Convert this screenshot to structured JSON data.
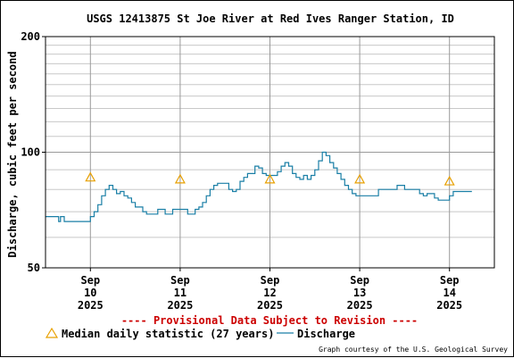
{
  "chart_data": {
    "type": "line",
    "title": "USGS 12413875 St Joe River at Red Ives Ranger Station, ID",
    "ylabel": "Discharge, cubic feet per second",
    "y_scale": "log",
    "ylim": [
      50,
      200
    ],
    "y_ticks": [
      {
        "value": 50,
        "label": "50"
      },
      {
        "value": 100,
        "label": "100"
      },
      {
        "value": 200,
        "label": "200"
      }
    ],
    "x_range": [
      "2025-09-09 12:00",
      "2025-09-14 12:00"
    ],
    "x_ticks": [
      {
        "value": "2025-09-10",
        "lines": [
          "Sep",
          "10",
          "2025"
        ]
      },
      {
        "value": "2025-09-11",
        "lines": [
          "Sep",
          "11",
          "2025"
        ]
      },
      {
        "value": "2025-09-12",
        "lines": [
          "Sep",
          "12",
          "2025"
        ]
      },
      {
        "value": "2025-09-13",
        "lines": [
          "Sep",
          "13",
          "2025"
        ]
      },
      {
        "value": "2025-09-14",
        "lines": [
          "Sep",
          "14",
          "2025"
        ]
      }
    ],
    "grid": true,
    "series": [
      {
        "name": "Discharge",
        "color": "#1a7fa6",
        "points": [
          [
            "2025-09-09 12:00",
            68
          ],
          [
            "2025-09-09 14:00",
            68
          ],
          [
            "2025-09-09 15:30",
            66
          ],
          [
            "2025-09-09 16:00",
            68
          ],
          [
            "2025-09-09 17:00",
            66
          ],
          [
            "2025-09-09 22:00",
            66
          ],
          [
            "2025-09-10 00:00",
            68
          ],
          [
            "2025-09-10 01:00",
            70
          ],
          [
            "2025-09-10 02:00",
            73
          ],
          [
            "2025-09-10 03:00",
            77
          ],
          [
            "2025-09-10 04:00",
            80
          ],
          [
            "2025-09-10 05:00",
            82
          ],
          [
            "2025-09-10 06:00",
            80
          ],
          [
            "2025-09-10 07:00",
            78
          ],
          [
            "2025-09-10 08:00",
            79
          ],
          [
            "2025-09-10 09:00",
            77
          ],
          [
            "2025-09-10 10:00",
            76
          ],
          [
            "2025-09-10 11:00",
            74
          ],
          [
            "2025-09-10 12:00",
            72
          ],
          [
            "2025-09-10 14:00",
            70
          ],
          [
            "2025-09-10 15:00",
            69
          ],
          [
            "2025-09-10 17:00",
            69
          ],
          [
            "2025-09-10 18:00",
            71
          ],
          [
            "2025-09-10 19:00",
            71
          ],
          [
            "2025-09-10 20:00",
            69
          ],
          [
            "2025-09-10 21:00",
            69
          ],
          [
            "2025-09-10 22:00",
            71
          ],
          [
            "2025-09-11 00:00",
            71
          ],
          [
            "2025-09-11 02:00",
            69
          ],
          [
            "2025-09-11 03:00",
            69
          ],
          [
            "2025-09-11 04:00",
            71
          ],
          [
            "2025-09-11 05:00",
            72
          ],
          [
            "2025-09-11 06:00",
            74
          ],
          [
            "2025-09-11 07:00",
            77
          ],
          [
            "2025-09-11 08:00",
            80
          ],
          [
            "2025-09-11 09:00",
            82
          ],
          [
            "2025-09-11 10:00",
            83
          ],
          [
            "2025-09-11 12:00",
            83
          ],
          [
            "2025-09-11 13:00",
            80
          ],
          [
            "2025-09-11 14:00",
            79
          ],
          [
            "2025-09-11 15:00",
            80
          ],
          [
            "2025-09-11 16:00",
            84
          ],
          [
            "2025-09-11 17:00",
            86
          ],
          [
            "2025-09-11 18:00",
            88
          ],
          [
            "2025-09-11 19:00",
            88
          ],
          [
            "2025-09-11 20:00",
            92
          ],
          [
            "2025-09-11 21:00",
            91
          ],
          [
            "2025-09-11 22:00",
            88
          ],
          [
            "2025-09-11 23:00",
            87
          ],
          [
            "2025-09-12 01:00",
            87
          ],
          [
            "2025-09-12 02:00",
            89
          ],
          [
            "2025-09-12 03:00",
            92
          ],
          [
            "2025-09-12 04:00",
            94
          ],
          [
            "2025-09-12 05:00",
            92
          ],
          [
            "2025-09-12 06:00",
            88
          ],
          [
            "2025-09-12 07:00",
            86
          ],
          [
            "2025-09-12 08:00",
            85
          ],
          [
            "2025-09-12 09:00",
            87
          ],
          [
            "2025-09-12 10:00",
            85
          ],
          [
            "2025-09-12 11:00",
            87
          ],
          [
            "2025-09-12 12:00",
            90
          ],
          [
            "2025-09-12 13:00",
            95
          ],
          [
            "2025-09-12 14:00",
            100
          ],
          [
            "2025-09-12 15:00",
            98
          ],
          [
            "2025-09-12 16:00",
            94
          ],
          [
            "2025-09-12 17:00",
            91
          ],
          [
            "2025-09-12 18:00",
            88
          ],
          [
            "2025-09-12 19:00",
            85
          ],
          [
            "2025-09-12 20:00",
            82
          ],
          [
            "2025-09-12 21:00",
            80
          ],
          [
            "2025-09-12 22:00",
            78
          ],
          [
            "2025-09-12 23:00",
            77
          ],
          [
            "2025-09-13 02:00",
            77
          ],
          [
            "2025-09-13 04:00",
            77
          ],
          [
            "2025-09-13 05:00",
            80
          ],
          [
            "2025-09-13 08:00",
            80
          ],
          [
            "2025-09-13 09:00",
            80
          ],
          [
            "2025-09-13 10:00",
            82
          ],
          [
            "2025-09-13 11:00",
            82
          ],
          [
            "2025-09-13 12:00",
            80
          ],
          [
            "2025-09-13 15:00",
            80
          ],
          [
            "2025-09-13 16:00",
            78
          ],
          [
            "2025-09-13 17:00",
            77
          ],
          [
            "2025-09-13 18:00",
            78
          ],
          [
            "2025-09-13 19:00",
            78
          ],
          [
            "2025-09-13 20:00",
            76
          ],
          [
            "2025-09-13 21:00",
            75
          ],
          [
            "2025-09-13 23:00",
            75
          ],
          [
            "2025-09-14 00:00",
            77
          ],
          [
            "2025-09-14 01:00",
            79
          ],
          [
            "2025-09-14 03:00",
            79
          ],
          [
            "2025-09-14 05:00",
            79
          ],
          [
            "2025-09-14 06:00",
            79
          ]
        ]
      },
      {
        "name": "Median daily statistic (27 years)",
        "marker": "triangle",
        "color": "#e8a000",
        "points": [
          [
            "2025-09-10 00:00",
            86
          ],
          [
            "2025-09-11 00:00",
            85
          ],
          [
            "2025-09-12 00:00",
            85
          ],
          [
            "2025-09-13 00:00",
            85
          ],
          [
            "2025-09-14 00:00",
            84
          ]
        ]
      }
    ]
  },
  "provisional_notice": "---- Provisional Data Subject to Revision ----",
  "legend": {
    "median_label": "Median daily statistic (27 years)",
    "discharge_label": "Discharge"
  },
  "credit": "Graph courtesy of the U.S. Geological Survey"
}
